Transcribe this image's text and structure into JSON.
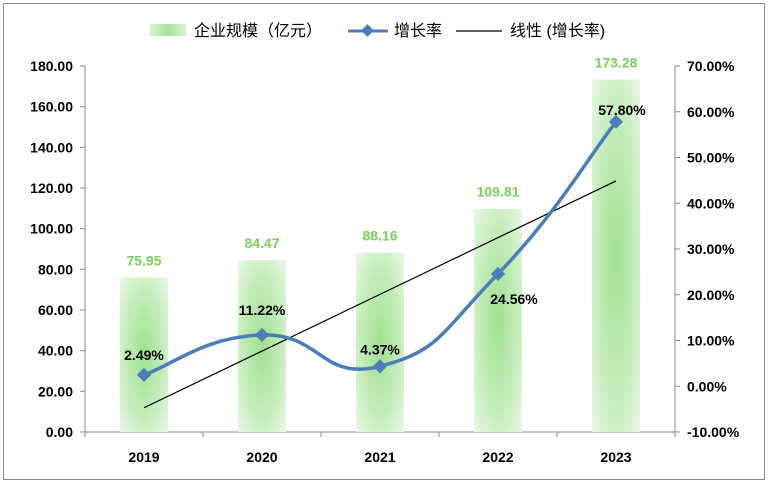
{
  "chart_data": {
    "type": "bar+line",
    "categories": [
      "2019",
      "2020",
      "2021",
      "2022",
      "2023"
    ],
    "series": [
      {
        "name": "企业规模（亿元）",
        "type": "bar",
        "axis": "left",
        "values": [
          75.95,
          84.47,
          88.16,
          109.81,
          173.28
        ],
        "labels": [
          "75.95",
          "84.47",
          "88.16",
          "109.81",
          "173.28"
        ],
        "color": "#a6e29a"
      },
      {
        "name": "增长率",
        "type": "line",
        "axis": "right",
        "smooth": true,
        "marker": "diamond",
        "values": [
          2.49,
          11.22,
          4.37,
          24.56,
          57.8
        ],
        "labels": [
          "2.49%",
          "11.22%",
          "4.37%",
          "24.56%",
          "57.80%"
        ],
        "color": "#4a7ebb"
      },
      {
        "name": "线性 (增长率)",
        "type": "trendline",
        "axis": "right",
        "of": "增长率",
        "color": "#000000"
      }
    ],
    "left_axis": {
      "ylim": [
        0,
        180
      ],
      "ticks": [
        "0.00",
        "20.00",
        "40.00",
        "60.00",
        "80.00",
        "100.00",
        "120.00",
        "140.00",
        "160.00",
        "180.00"
      ]
    },
    "right_axis": {
      "ylim": [
        -10,
        70
      ],
      "ticks": [
        "-10.00%",
        "0.00%",
        "10.00%",
        "20.00%",
        "30.00%",
        "40.00%",
        "50.00%",
        "60.00%",
        "70.00%"
      ]
    },
    "grid": false,
    "legend": "top"
  }
}
